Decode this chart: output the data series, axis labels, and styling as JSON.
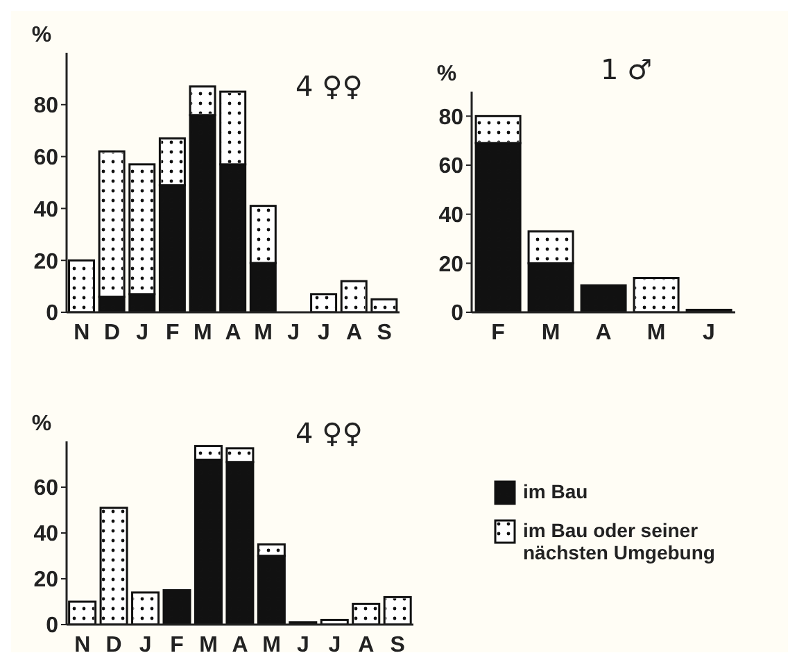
{
  "chart_data": [
    {
      "type": "bar",
      "stacked": true,
      "ylabel": "%",
      "annotations": [
        "4 ♀♀"
      ],
      "categories": [
        "N",
        "D",
        "J",
        "F",
        "M",
        "A",
        "M",
        "J",
        "J",
        "A",
        "S"
      ],
      "ylim": [
        0,
        100
      ],
      "yticks": [
        0,
        20,
        40,
        60,
        80
      ],
      "legend": false,
      "series": [
        {
          "color": "#111111",
          "values": [
            0,
            6,
            7,
            49,
            76,
            57,
            19,
            0,
            0,
            0,
            0
          ]
        },
        {
          "color": "#ffffff",
          "values": [
            20,
            56,
            50,
            18,
            11,
            28,
            22,
            0,
            7,
            12,
            5
          ]
        }
      ]
    },
    {
      "type": "bar",
      "stacked": true,
      "ylabel": "%",
      "annotations": [
        "1 ♂"
      ],
      "categories": [
        "F",
        "M",
        "A",
        "M",
        "J"
      ],
      "ylim": [
        0,
        90
      ],
      "yticks": [
        0,
        20,
        40,
        60,
        80
      ],
      "legend": false,
      "series": [
        {
          "color": "#111111",
          "values": [
            69,
            20,
            11,
            0,
            1
          ]
        },
        {
          "color": "#ffffff",
          "values": [
            11,
            13,
            0,
            14,
            0
          ]
        }
      ]
    },
    {
      "type": "bar",
      "stacked": true,
      "ylabel": "%",
      "annotations": [
        "4 ♀♀"
      ],
      "categories": [
        "N",
        "D",
        "J",
        "F",
        "M",
        "A",
        "M",
        "J",
        "J",
        "A",
        "S"
      ],
      "ylim": [
        0,
        80
      ],
      "yticks": [
        0,
        20,
        40,
        60
      ],
      "legend": "right",
      "series": [
        {
          "name": "im Bau",
          "color": "#111111",
          "values": [
            0,
            0,
            0,
            15,
            72,
            71,
            30,
            1,
            0,
            0,
            0
          ]
        },
        {
          "name": "im Bau oder seiner nächsten Umgebung",
          "color": "#ffffff",
          "values": [
            10,
            51,
            14,
            0,
            6,
            6,
            5,
            0,
            2,
            9,
            12
          ]
        }
      ]
    }
  ]
}
